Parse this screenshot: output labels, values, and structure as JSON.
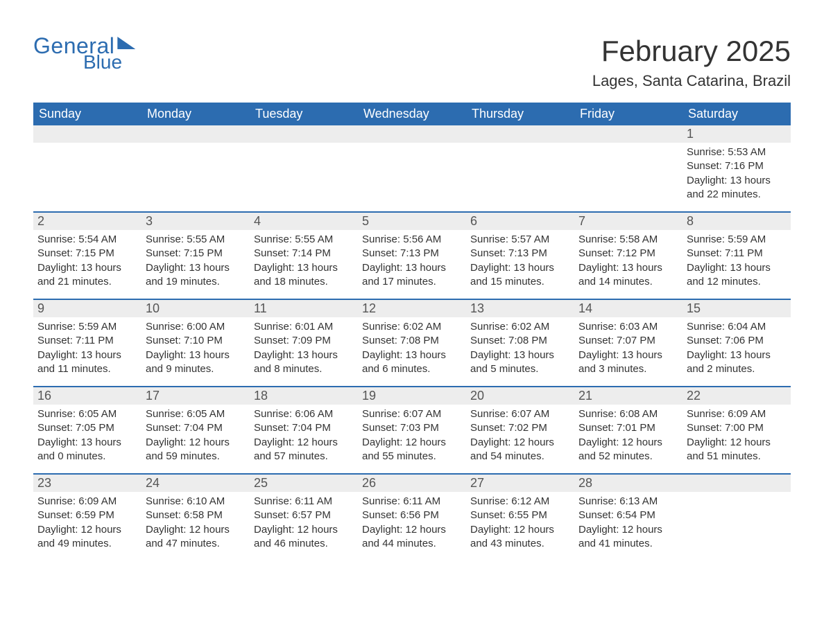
{
  "logo": {
    "general": "General",
    "blue": "Blue"
  },
  "header": {
    "month_title": "February 2025",
    "location": "Lages, Santa Catarina, Brazil"
  },
  "colors": {
    "brand": "#2c6cb0",
    "row_alt": "#ededed",
    "text": "#333333",
    "bg": "#ffffff"
  },
  "calendar": {
    "type": "table",
    "day_headers": [
      "Sunday",
      "Monday",
      "Tuesday",
      "Wednesday",
      "Thursday",
      "Friday",
      "Saturday"
    ],
    "weeks": [
      [
        {},
        {},
        {},
        {},
        {},
        {},
        {
          "day": "1",
          "sunrise": "Sunrise: 5:53 AM",
          "sunset": "Sunset: 7:16 PM",
          "dl1": "Daylight: 13 hours",
          "dl2": "and 22 minutes."
        }
      ],
      [
        {
          "day": "2",
          "sunrise": "Sunrise: 5:54 AM",
          "sunset": "Sunset: 7:15 PM",
          "dl1": "Daylight: 13 hours",
          "dl2": "and 21 minutes."
        },
        {
          "day": "3",
          "sunrise": "Sunrise: 5:55 AM",
          "sunset": "Sunset: 7:15 PM",
          "dl1": "Daylight: 13 hours",
          "dl2": "and 19 minutes."
        },
        {
          "day": "4",
          "sunrise": "Sunrise: 5:55 AM",
          "sunset": "Sunset: 7:14 PM",
          "dl1": "Daylight: 13 hours",
          "dl2": "and 18 minutes."
        },
        {
          "day": "5",
          "sunrise": "Sunrise: 5:56 AM",
          "sunset": "Sunset: 7:13 PM",
          "dl1": "Daylight: 13 hours",
          "dl2": "and 17 minutes."
        },
        {
          "day": "6",
          "sunrise": "Sunrise: 5:57 AM",
          "sunset": "Sunset: 7:13 PM",
          "dl1": "Daylight: 13 hours",
          "dl2": "and 15 minutes."
        },
        {
          "day": "7",
          "sunrise": "Sunrise: 5:58 AM",
          "sunset": "Sunset: 7:12 PM",
          "dl1": "Daylight: 13 hours",
          "dl2": "and 14 minutes."
        },
        {
          "day": "8",
          "sunrise": "Sunrise: 5:59 AM",
          "sunset": "Sunset: 7:11 PM",
          "dl1": "Daylight: 13 hours",
          "dl2": "and 12 minutes."
        }
      ],
      [
        {
          "day": "9",
          "sunrise": "Sunrise: 5:59 AM",
          "sunset": "Sunset: 7:11 PM",
          "dl1": "Daylight: 13 hours",
          "dl2": "and 11 minutes."
        },
        {
          "day": "10",
          "sunrise": "Sunrise: 6:00 AM",
          "sunset": "Sunset: 7:10 PM",
          "dl1": "Daylight: 13 hours",
          "dl2": "and 9 minutes."
        },
        {
          "day": "11",
          "sunrise": "Sunrise: 6:01 AM",
          "sunset": "Sunset: 7:09 PM",
          "dl1": "Daylight: 13 hours",
          "dl2": "and 8 minutes."
        },
        {
          "day": "12",
          "sunrise": "Sunrise: 6:02 AM",
          "sunset": "Sunset: 7:08 PM",
          "dl1": "Daylight: 13 hours",
          "dl2": "and 6 minutes."
        },
        {
          "day": "13",
          "sunrise": "Sunrise: 6:02 AM",
          "sunset": "Sunset: 7:08 PM",
          "dl1": "Daylight: 13 hours",
          "dl2": "and 5 minutes."
        },
        {
          "day": "14",
          "sunrise": "Sunrise: 6:03 AM",
          "sunset": "Sunset: 7:07 PM",
          "dl1": "Daylight: 13 hours",
          "dl2": "and 3 minutes."
        },
        {
          "day": "15",
          "sunrise": "Sunrise: 6:04 AM",
          "sunset": "Sunset: 7:06 PM",
          "dl1": "Daylight: 13 hours",
          "dl2": "and 2 minutes."
        }
      ],
      [
        {
          "day": "16",
          "sunrise": "Sunrise: 6:05 AM",
          "sunset": "Sunset: 7:05 PM",
          "dl1": "Daylight: 13 hours",
          "dl2": "and 0 minutes."
        },
        {
          "day": "17",
          "sunrise": "Sunrise: 6:05 AM",
          "sunset": "Sunset: 7:04 PM",
          "dl1": "Daylight: 12 hours",
          "dl2": "and 59 minutes."
        },
        {
          "day": "18",
          "sunrise": "Sunrise: 6:06 AM",
          "sunset": "Sunset: 7:04 PM",
          "dl1": "Daylight: 12 hours",
          "dl2": "and 57 minutes."
        },
        {
          "day": "19",
          "sunrise": "Sunrise: 6:07 AM",
          "sunset": "Sunset: 7:03 PM",
          "dl1": "Daylight: 12 hours",
          "dl2": "and 55 minutes."
        },
        {
          "day": "20",
          "sunrise": "Sunrise: 6:07 AM",
          "sunset": "Sunset: 7:02 PM",
          "dl1": "Daylight: 12 hours",
          "dl2": "and 54 minutes."
        },
        {
          "day": "21",
          "sunrise": "Sunrise: 6:08 AM",
          "sunset": "Sunset: 7:01 PM",
          "dl1": "Daylight: 12 hours",
          "dl2": "and 52 minutes."
        },
        {
          "day": "22",
          "sunrise": "Sunrise: 6:09 AM",
          "sunset": "Sunset: 7:00 PM",
          "dl1": "Daylight: 12 hours",
          "dl2": "and 51 minutes."
        }
      ],
      [
        {
          "day": "23",
          "sunrise": "Sunrise: 6:09 AM",
          "sunset": "Sunset: 6:59 PM",
          "dl1": "Daylight: 12 hours",
          "dl2": "and 49 minutes."
        },
        {
          "day": "24",
          "sunrise": "Sunrise: 6:10 AM",
          "sunset": "Sunset: 6:58 PM",
          "dl1": "Daylight: 12 hours",
          "dl2": "and 47 minutes."
        },
        {
          "day": "25",
          "sunrise": "Sunrise: 6:11 AM",
          "sunset": "Sunset: 6:57 PM",
          "dl1": "Daylight: 12 hours",
          "dl2": "and 46 minutes."
        },
        {
          "day": "26",
          "sunrise": "Sunrise: 6:11 AM",
          "sunset": "Sunset: 6:56 PM",
          "dl1": "Daylight: 12 hours",
          "dl2": "and 44 minutes."
        },
        {
          "day": "27",
          "sunrise": "Sunrise: 6:12 AM",
          "sunset": "Sunset: 6:55 PM",
          "dl1": "Daylight: 12 hours",
          "dl2": "and 43 minutes."
        },
        {
          "day": "28",
          "sunrise": "Sunrise: 6:13 AM",
          "sunset": "Sunset: 6:54 PM",
          "dl1": "Daylight: 12 hours",
          "dl2": "and 41 minutes."
        },
        {}
      ]
    ]
  }
}
